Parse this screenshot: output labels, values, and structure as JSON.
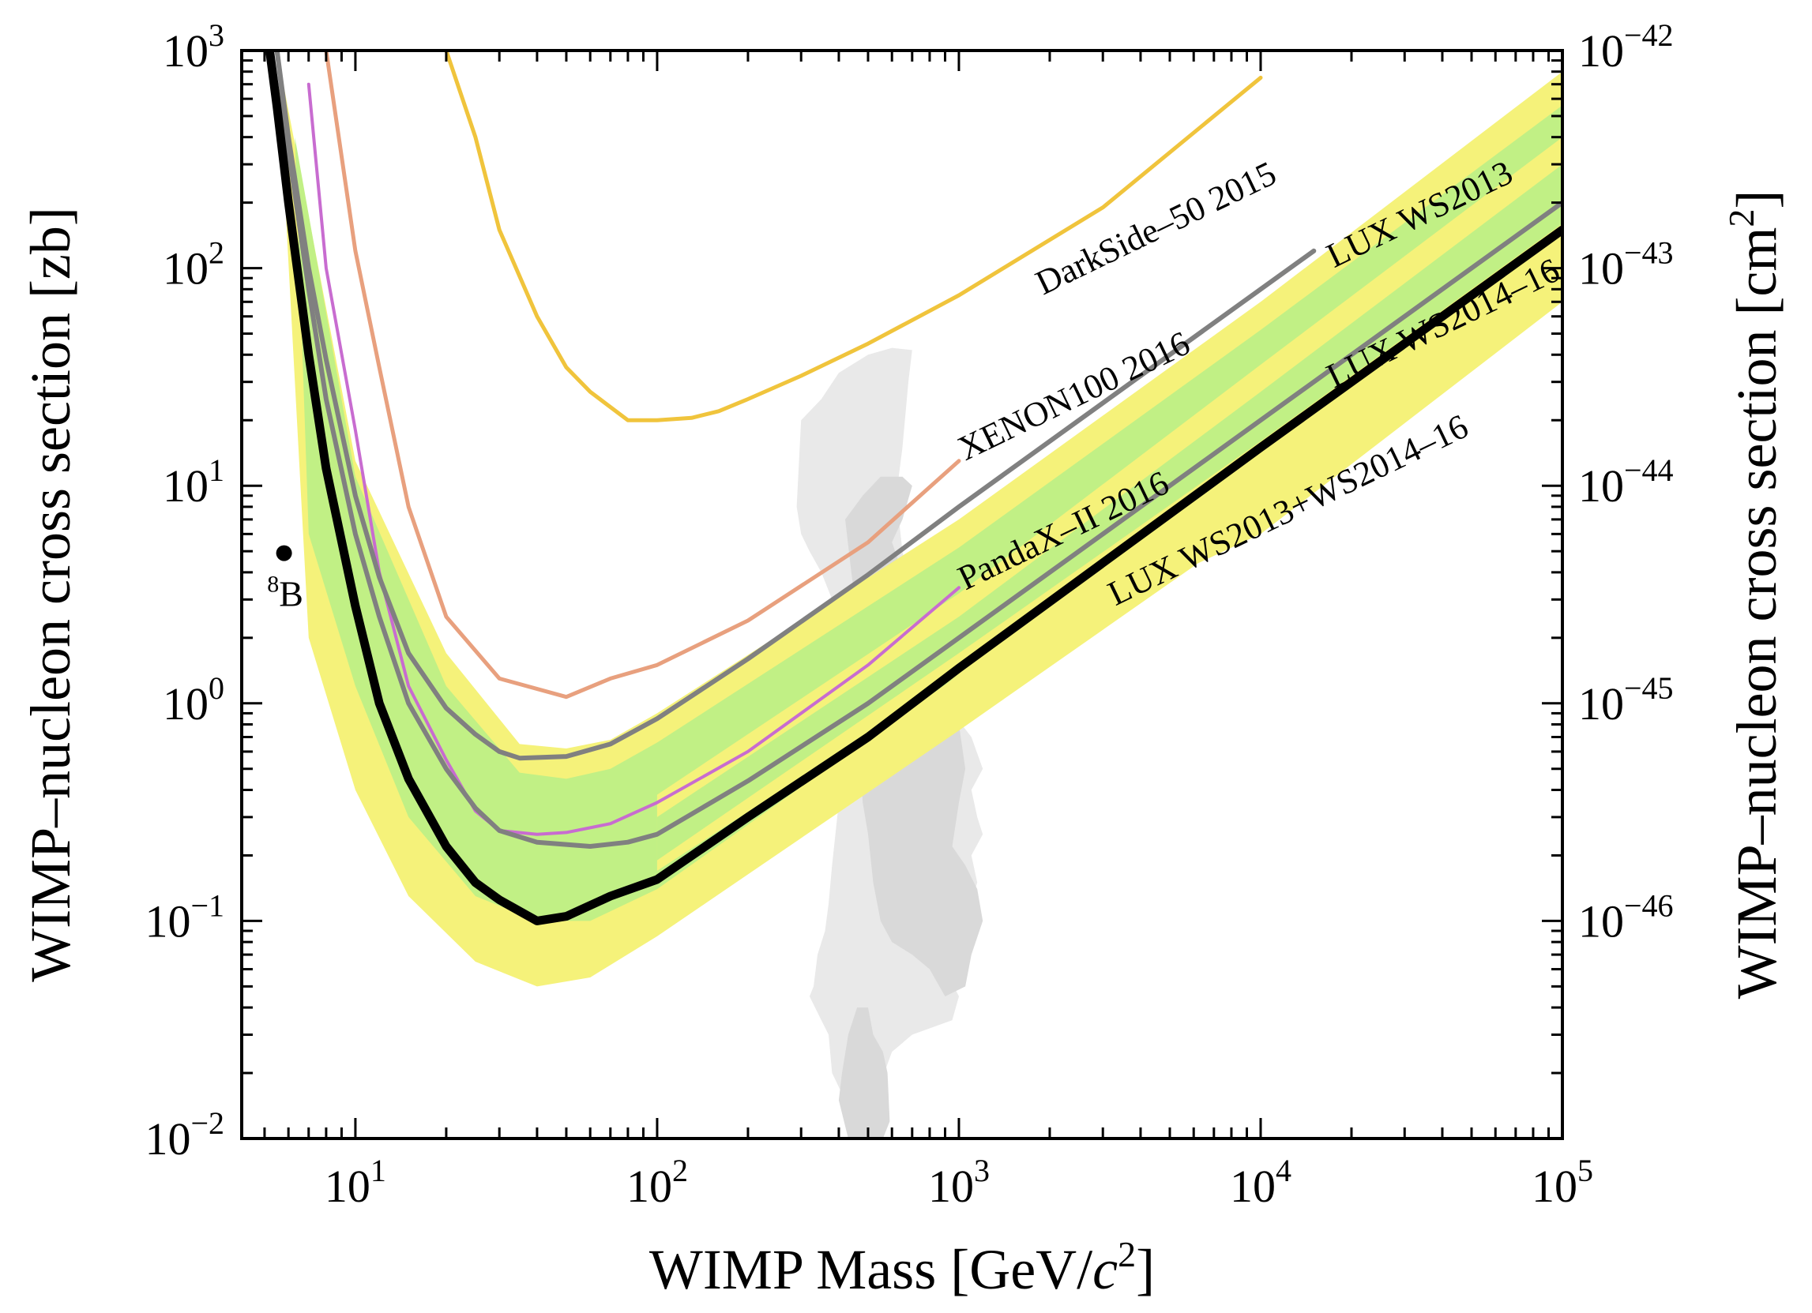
{
  "chart_data": {
    "type": "line",
    "xscale": "log",
    "yscale": "log",
    "xlim": [
      4.2,
      100000
    ],
    "ylim": [
      0.01,
      1000
    ],
    "xlabel_main": "WIMP Mass [GeV/",
    "xlabel_c": "c",
    "xlabel_exp": "2",
    "xlabel_end": "]",
    "ylabel": "WIMP–nucleon cross section [zb]",
    "ylabel_right_main": "WIMP–nucleon cross section [cm",
    "ylabel_right_exp": "2",
    "ylabel_right_end": "]",
    "x_ticks": [
      {
        "value": 10,
        "base": "10",
        "exp": "1"
      },
      {
        "value": 100,
        "base": "10",
        "exp": "2"
      },
      {
        "value": 1000,
        "base": "10",
        "exp": "3"
      },
      {
        "value": 10000,
        "base": "10",
        "exp": "4"
      },
      {
        "value": 100000,
        "base": "10",
        "exp": "5"
      }
    ],
    "y_ticks": [
      {
        "value": 0.01,
        "base": "10",
        "exp": "−2"
      },
      {
        "value": 0.1,
        "base": "10",
        "exp": "−1"
      },
      {
        "value": 1,
        "base": "10",
        "exp": "0"
      },
      {
        "value": 10,
        "base": "10",
        "exp": "1"
      },
      {
        "value": 100,
        "base": "10",
        "exp": "2"
      },
      {
        "value": 1000,
        "base": "10",
        "exp": "3"
      }
    ],
    "y_right_ticks": [
      {
        "value": 1000,
        "base": "10",
        "exp": "−42"
      },
      {
        "value": 100,
        "base": "10",
        "exp": "−43"
      },
      {
        "value": 10,
        "base": "10",
        "exp": "−44"
      },
      {
        "value": 1,
        "base": "10",
        "exp": "−45"
      },
      {
        "value": 0.1,
        "base": "10",
        "exp": "−46"
      }
    ],
    "bands": [
      {
        "name": "±2σ sensitivity (WS2013)",
        "color": "#f5f27a",
        "upper": [
          [
            5.5,
            1000
          ],
          [
            10,
            13
          ],
          [
            20,
            1.7
          ],
          [
            35,
            0.65
          ],
          [
            50,
            0.62
          ],
          [
            70,
            0.68
          ],
          [
            100,
            0.9
          ],
          [
            1000,
            7
          ],
          [
            10000,
            70
          ],
          [
            100000,
            800
          ]
        ],
        "lower": [
          [
            100000,
            70
          ],
          [
            10000,
            7
          ],
          [
            1000,
            0.75
          ],
          [
            100,
            0.085
          ],
          [
            60,
            0.055
          ],
          [
            40,
            0.05
          ],
          [
            25,
            0.065
          ],
          [
            15,
            0.13
          ],
          [
            10,
            0.4
          ],
          [
            7,
            2
          ]
        ]
      },
      {
        "name": "±1σ sensitivity (WS2013)",
        "color": "#c1f085",
        "upper": [
          [
            6.3,
            400
          ],
          [
            10,
            11
          ],
          [
            20,
            1.2
          ],
          [
            35,
            0.48
          ],
          [
            50,
            0.45
          ],
          [
            70,
            0.5
          ],
          [
            100,
            0.66
          ],
          [
            1000,
            5.2
          ],
          [
            10000,
            52
          ],
          [
            100000,
            560
          ]
        ],
        "lower": [
          [
            100000,
            130
          ],
          [
            10000,
            13
          ],
          [
            1000,
            1.35
          ],
          [
            100,
            0.14
          ],
          [
            60,
            0.1
          ],
          [
            40,
            0.1
          ],
          [
            25,
            0.13
          ],
          [
            15,
            0.3
          ],
          [
            10,
            1.2
          ],
          [
            7,
            6
          ]
        ]
      },
      {
        "name": "±2σ sensitivity (WS2013+WS2014–16)",
        "color": "#f5f27a",
        "upper": [
          [
            100000,
            400
          ],
          [
            10000,
            36
          ],
          [
            1000,
            3.2
          ],
          [
            100,
            0.38
          ]
        ],
        "lower": [
          [
            100,
            0.17
          ],
          [
            1000,
            1.35
          ],
          [
            10000,
            6
          ],
          [
            100000,
            70
          ]
        ]
      },
      {
        "name": "±1σ sensitivity (WS2013+WS2014–16)",
        "color": "#c1f085",
        "upper": [
          [
            100000,
            300
          ],
          [
            10000,
            27
          ],
          [
            1000,
            2.5
          ],
          [
            100,
            0.3
          ]
        ],
        "lower": [
          [
            100,
            0.19
          ],
          [
            1000,
            1.7
          ],
          [
            10000,
            16
          ],
          [
            100000,
            160
          ]
        ]
      }
    ],
    "series": [
      {
        "name": "DarkSide–50 2015",
        "color": "#f0c43c",
        "width": 5,
        "points": [
          [
            20,
            1000
          ],
          [
            25,
            400
          ],
          [
            30,
            150
          ],
          [
            40,
            60
          ],
          [
            50,
            35
          ],
          [
            60,
            27
          ],
          [
            80,
            20
          ],
          [
            100,
            20
          ],
          [
            130,
            20.5
          ],
          [
            160,
            22
          ],
          [
            200,
            25
          ],
          [
            300,
            32
          ],
          [
            500,
            45
          ],
          [
            1000,
            75
          ],
          [
            3000,
            190
          ],
          [
            10000,
            750
          ]
        ]
      },
      {
        "name": "XENON100 2016",
        "color": "#e8a07e",
        "width": 5,
        "points": [
          [
            8,
            1000
          ],
          [
            10,
            120
          ],
          [
            12,
            35
          ],
          [
            15,
            8
          ],
          [
            20,
            2.5
          ],
          [
            30,
            1.3
          ],
          [
            50,
            1.07
          ],
          [
            70,
            1.3
          ],
          [
            100,
            1.5
          ],
          [
            200,
            2.4
          ],
          [
            500,
            5.5
          ],
          [
            1000,
            13
          ]
        ]
      },
      {
        "name": "PandaX–II 2016",
        "color": "#c86cd0",
        "width": 4,
        "points": [
          [
            7,
            700
          ],
          [
            8,
            100
          ],
          [
            10,
            18
          ],
          [
            12,
            4
          ],
          [
            15,
            1.2
          ],
          [
            20,
            0.55
          ],
          [
            25,
            0.32
          ],
          [
            30,
            0.26
          ],
          [
            40,
            0.25
          ],
          [
            50,
            0.255
          ],
          [
            70,
            0.28
          ],
          [
            100,
            0.35
          ],
          [
            200,
            0.6
          ],
          [
            500,
            1.5
          ],
          [
            1000,
            3.4
          ]
        ]
      },
      {
        "name": "LUX WS2013",
        "color": "#808080",
        "width": 6,
        "points": [
          [
            5.5,
            1000
          ],
          [
            6,
            400
          ],
          [
            7,
            100
          ],
          [
            8,
            38
          ],
          [
            10,
            9
          ],
          [
            12,
            3.8
          ],
          [
            15,
            1.7
          ],
          [
            20,
            0.95
          ],
          [
            25,
            0.72
          ],
          [
            30,
            0.6
          ],
          [
            35,
            0.56
          ],
          [
            50,
            0.57
          ],
          [
            70,
            0.65
          ],
          [
            100,
            0.85
          ],
          [
            200,
            1.6
          ],
          [
            500,
            3.9
          ],
          [
            1000,
            8
          ],
          [
            3000,
            24
          ],
          [
            10000,
            80
          ],
          [
            15000,
            120
          ]
        ]
      },
      {
        "name": "LUX WS2014–16",
        "color": "#808080",
        "width": 6,
        "points": [
          [
            5.5,
            1000
          ],
          [
            6,
            350
          ],
          [
            7,
            80
          ],
          [
            8,
            25
          ],
          [
            10,
            6
          ],
          [
            12,
            2.5
          ],
          [
            15,
            1
          ],
          [
            20,
            0.5
          ],
          [
            25,
            0.33
          ],
          [
            30,
            0.26
          ],
          [
            40,
            0.23
          ],
          [
            60,
            0.22
          ],
          [
            80,
            0.23
          ],
          [
            100,
            0.25
          ],
          [
            200,
            0.44
          ],
          [
            500,
            1
          ],
          [
            1000,
            2
          ],
          [
            10000,
            20
          ],
          [
            100000,
            200
          ]
        ]
      },
      {
        "name": "LUX WS2013+WS2014–16",
        "color": "#000000",
        "width": 11,
        "points": [
          [
            5.2,
            1000
          ],
          [
            5.5,
            550
          ],
          [
            6,
            200
          ],
          [
            7,
            40
          ],
          [
            8,
            12
          ],
          [
            10,
            2.8
          ],
          [
            12,
            1
          ],
          [
            15,
            0.45
          ],
          [
            20,
            0.22
          ],
          [
            25,
            0.15
          ],
          [
            30,
            0.125
          ],
          [
            40,
            0.1
          ],
          [
            50,
            0.105
          ],
          [
            70,
            0.13
          ],
          [
            100,
            0.155
          ],
          [
            200,
            0.3
          ],
          [
            500,
            0.7
          ],
          [
            1000,
            1.45
          ],
          [
            10000,
            15
          ],
          [
            100000,
            150
          ]
        ]
      }
    ],
    "curve_labels": [
      {
        "text": "DarkSide–50 2015",
        "x": 1900,
        "y": 75,
        "angle": 25.8
      },
      {
        "text": "XENON100 2016",
        "x": 1050,
        "y": 13,
        "angle": 25.8
      },
      {
        "text": "LUX WS2013",
        "x": 17500,
        "y": 100,
        "angle": 25.8
      },
      {
        "text": "LUX WS2014–16",
        "x": 17500,
        "y": 28,
        "angle": 25.8
      },
      {
        "text": "PandaX–II 2016",
        "x": 1050,
        "y": 3.3,
        "angle": 25.8
      },
      {
        "text": "LUX WS2013+WS2014–16",
        "x": 3300,
        "y": 2.8,
        "angle": 25.8
      }
    ],
    "point_source": {
      "label": "B",
      "label_sup": "8",
      "x": 5.8,
      "y": 4.9,
      "label_x": 5.1,
      "label_y": 2.8
    },
    "theory_regions": [
      {
        "name": "light-grey region",
        "color": "#e9e9e9",
        "points": [
          [
            290,
            8
          ],
          [
            300,
            20
          ],
          [
            350,
            25
          ],
          [
            400,
            33
          ],
          [
            500,
            40
          ],
          [
            600,
            43
          ],
          [
            700,
            42
          ],
          [
            680,
            30
          ],
          [
            650,
            15
          ],
          [
            620,
            9
          ],
          [
            650,
            5
          ],
          [
            700,
            3
          ],
          [
            800,
            2
          ],
          [
            900,
            1
          ],
          [
            1100,
            0.7
          ],
          [
            1200,
            0.5
          ],
          [
            1100,
            0.4
          ],
          [
            1150,
            0.3
          ],
          [
            1200,
            0.25
          ],
          [
            1100,
            0.2
          ],
          [
            1150,
            0.15
          ],
          [
            1050,
            0.1
          ],
          [
            900,
            0.06
          ],
          [
            1000,
            0.045
          ],
          [
            950,
            0.035
          ],
          [
            700,
            0.03
          ],
          [
            600,
            0.025
          ],
          [
            550,
            0.018
          ],
          [
            560,
            0.012
          ],
          [
            450,
            0.01
          ],
          [
            420,
            0.015
          ],
          [
            380,
            0.02
          ],
          [
            370,
            0.03
          ],
          [
            350,
            0.035
          ],
          [
            320,
            0.045
          ],
          [
            330,
            0.05
          ],
          [
            340,
            0.07
          ],
          [
            360,
            0.09
          ],
          [
            370,
            0.12
          ],
          [
            380,
            0.18
          ],
          [
            400,
            0.35
          ],
          [
            430,
            0.6
          ],
          [
            450,
            1
          ],
          [
            420,
            2
          ],
          [
            380,
            3
          ],
          [
            350,
            4
          ],
          [
            320,
            5
          ],
          [
            300,
            6
          ]
        ]
      },
      {
        "name": "dark-grey region",
        "color": "#d9d9d9",
        "points": [
          [
            420,
            7
          ],
          [
            480,
            9
          ],
          [
            550,
            11
          ],
          [
            650,
            11
          ],
          [
            700,
            10
          ],
          [
            650,
            7
          ],
          [
            600,
            5.5
          ],
          [
            650,
            4
          ],
          [
            700,
            3
          ],
          [
            800,
            2
          ],
          [
            900,
            1.2
          ],
          [
            1000,
            0.8
          ],
          [
            1050,
            0.5
          ],
          [
            1000,
            0.35
          ],
          [
            950,
            0.22
          ],
          [
            1050,
            0.18
          ],
          [
            1150,
            0.14
          ],
          [
            1200,
            0.1
          ],
          [
            1100,
            0.07
          ],
          [
            1050,
            0.05
          ],
          [
            900,
            0.045
          ],
          [
            800,
            0.06
          ],
          [
            700,
            0.07
          ],
          [
            600,
            0.08
          ],
          [
            550,
            0.1
          ],
          [
            520,
            0.15
          ],
          [
            500,
            0.25
          ],
          [
            480,
            0.35
          ],
          [
            470,
            0.55
          ],
          [
            480,
            0.9
          ],
          [
            470,
            2
          ],
          [
            440,
            4
          ]
        ]
      },
      {
        "name": "dark-grey lower lobe",
        "color": "#d9d9d9",
        "points": [
          [
            500,
            0.04
          ],
          [
            520,
            0.03
          ],
          [
            560,
            0.025
          ],
          [
            580,
            0.02
          ],
          [
            590,
            0.012
          ],
          [
            560,
            0.01
          ],
          [
            430,
            0.01
          ],
          [
            400,
            0.015
          ],
          [
            410,
            0.02
          ],
          [
            430,
            0.03
          ],
          [
            460,
            0.04
          ]
        ]
      }
    ]
  }
}
